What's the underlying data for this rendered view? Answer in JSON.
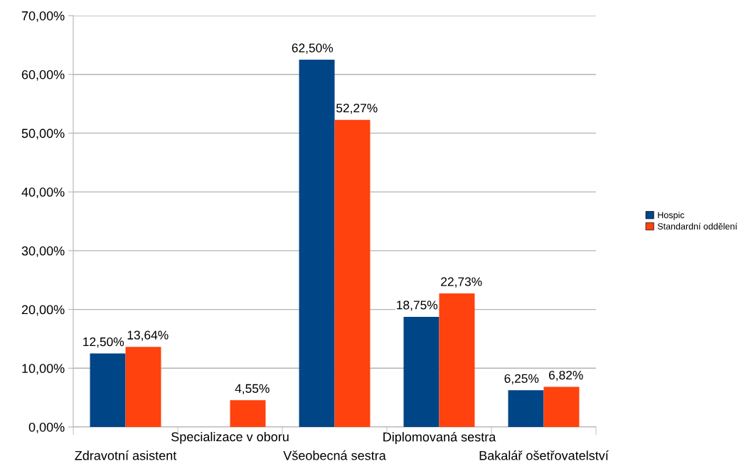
{
  "chart_data": {
    "type": "bar",
    "categories": [
      "Zdravotní asistent",
      "Specializace v oboru",
      "Všeobecná sestra",
      "Diplomovaná sestra",
      "Bakalář ošetřovatelství"
    ],
    "series": [
      {
        "name": "Hospic",
        "color": "#004586",
        "values": [
          12.5,
          null,
          62.5,
          18.75,
          6.25
        ],
        "value_labels": [
          "12,50%",
          null,
          "62,50%",
          "18,75%",
          "6,25%"
        ]
      },
      {
        "name": "Standardní oddělení",
        "color": "#ff420e",
        "values": [
          13.64,
          4.55,
          52.27,
          22.73,
          6.82
        ],
        "value_labels": [
          "13,64%",
          "4,55%",
          "52,27%",
          "22,73%",
          "6,82%"
        ]
      }
    ],
    "ylim": [
      0,
      70
    ],
    "yticks": [
      {
        "value": 0,
        "label": "0,00%"
      },
      {
        "value": 10,
        "label": "10,00%"
      },
      {
        "value": 20,
        "label": "20,00%"
      },
      {
        "value": 30,
        "label": "30,00%"
      },
      {
        "value": 40,
        "label": "40,00%"
      },
      {
        "value": 50,
        "label": "50,00%"
      },
      {
        "value": 60,
        "label": "60,00%"
      },
      {
        "value": 70,
        "label": "70,00%"
      }
    ],
    "grid": "y",
    "legend": "right"
  }
}
